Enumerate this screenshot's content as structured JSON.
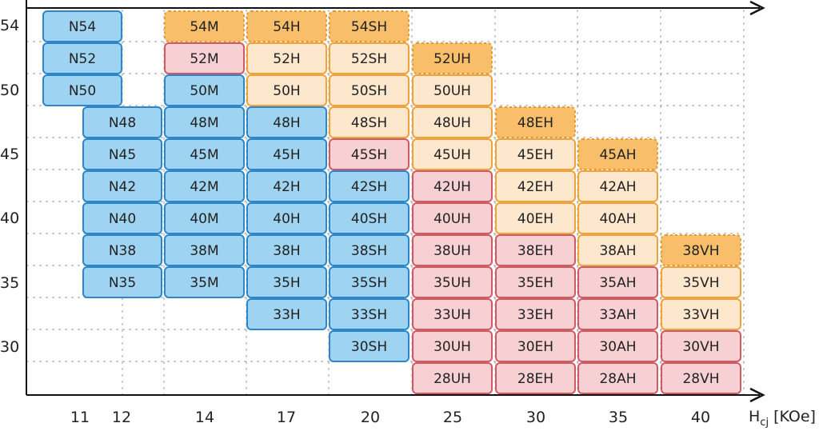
{
  "chart_data": {
    "type": "table",
    "title": "",
    "xlabel": "H",
    "xlabel_subscript": "cj",
    "xlabel_unit": "[KOe]",
    "ylabel": "",
    "x_ticks": [
      "11",
      "12",
      "14",
      "17",
      "20",
      "25",
      "30",
      "35",
      "40"
    ],
    "y_ticks": [
      "54",
      "50",
      "45",
      "40",
      "35",
      "30"
    ],
    "grid": true,
    "colors": {
      "blue_fill": "#9fd3f2",
      "blue_border": "#2e86c9",
      "pink_fill": "#f7d0d4",
      "pink_border": "#d05a63",
      "cream_fill": "#fde7cd",
      "cream_border": "#f0a23c",
      "orange_fill": "#f8be6a",
      "orange_border": "#e59a2c"
    },
    "columns": [
      {
        "key": "N",
        "grades": [
          {
            "label": "N54",
            "value": 54,
            "style": "blue"
          },
          {
            "label": "N52",
            "value": 52,
            "style": "blue"
          },
          {
            "label": "N50",
            "value": 50,
            "style": "blue"
          },
          {
            "label": "N48",
            "value": 48,
            "style": "blue"
          },
          {
            "label": "N45",
            "value": 45,
            "style": "blue"
          },
          {
            "label": "N42",
            "value": 42,
            "style": "blue"
          },
          {
            "label": "N40",
            "value": 40,
            "style": "blue"
          },
          {
            "label": "N38",
            "value": 38,
            "style": "blue"
          },
          {
            "label": "N35",
            "value": 35,
            "style": "blue"
          }
        ]
      },
      {
        "key": "M",
        "grades": [
          {
            "label": "54M",
            "value": 54,
            "style": "orange-dashed"
          },
          {
            "label": "52M",
            "value": 52,
            "style": "pink"
          },
          {
            "label": "50M",
            "value": 50,
            "style": "blue"
          },
          {
            "label": "48M",
            "value": 48,
            "style": "blue"
          },
          {
            "label": "45M",
            "value": 45,
            "style": "blue"
          },
          {
            "label": "42M",
            "value": 42,
            "style": "blue"
          },
          {
            "label": "40M",
            "value": 40,
            "style": "blue"
          },
          {
            "label": "38M",
            "value": 38,
            "style": "blue"
          },
          {
            "label": "35M",
            "value": 35,
            "style": "blue"
          }
        ]
      },
      {
        "key": "H",
        "grades": [
          {
            "label": "54H",
            "value": 54,
            "style": "orange-dashed"
          },
          {
            "label": "52H",
            "value": 52,
            "style": "cream"
          },
          {
            "label": "50H",
            "value": 50,
            "style": "cream"
          },
          {
            "label": "48H",
            "value": 48,
            "style": "blue"
          },
          {
            "label": "45H",
            "value": 45,
            "style": "blue"
          },
          {
            "label": "42H",
            "value": 42,
            "style": "blue"
          },
          {
            "label": "40H",
            "value": 40,
            "style": "blue"
          },
          {
            "label": "38H",
            "value": 38,
            "style": "blue"
          },
          {
            "label": "35H",
            "value": 35,
            "style": "blue"
          },
          {
            "label": "33H",
            "value": 33,
            "style": "blue"
          }
        ]
      },
      {
        "key": "SH",
        "grades": [
          {
            "label": "54SH",
            "value": 54,
            "style": "orange-dashed"
          },
          {
            "label": "52SH",
            "value": 52,
            "style": "cream"
          },
          {
            "label": "50SH",
            "value": 50,
            "style": "cream"
          },
          {
            "label": "48SH",
            "value": 48,
            "style": "cream"
          },
          {
            "label": "45SH",
            "value": 45,
            "style": "pink"
          },
          {
            "label": "42SH",
            "value": 42,
            "style": "blue"
          },
          {
            "label": "40SH",
            "value": 40,
            "style": "blue"
          },
          {
            "label": "38SH",
            "value": 38,
            "style": "blue"
          },
          {
            "label": "35SH",
            "value": 35,
            "style": "blue"
          },
          {
            "label": "33SH",
            "value": 33,
            "style": "blue"
          },
          {
            "label": "30SH",
            "value": 30,
            "style": "blue"
          }
        ]
      },
      {
        "key": "UH",
        "grades": [
          {
            "label": "52UH",
            "value": 52,
            "style": "orange-dashed"
          },
          {
            "label": "50UH",
            "value": 50,
            "style": "cream"
          },
          {
            "label": "48UH",
            "value": 48,
            "style": "cream"
          },
          {
            "label": "45UH",
            "value": 45,
            "style": "cream"
          },
          {
            "label": "42UH",
            "value": 42,
            "style": "pink"
          },
          {
            "label": "40UH",
            "value": 40,
            "style": "pink"
          },
          {
            "label": "38UH",
            "value": 38,
            "style": "pink"
          },
          {
            "label": "35UH",
            "value": 35,
            "style": "pink"
          },
          {
            "label": "33UH",
            "value": 33,
            "style": "pink"
          },
          {
            "label": "30UH",
            "value": 30,
            "style": "pink"
          },
          {
            "label": "28UH",
            "value": 28,
            "style": "pink"
          }
        ]
      },
      {
        "key": "EH",
        "grades": [
          {
            "label": "48EH",
            "value": 48,
            "style": "orange-dashed"
          },
          {
            "label": "45EH",
            "value": 45,
            "style": "cream"
          },
          {
            "label": "42EH",
            "value": 42,
            "style": "cream"
          },
          {
            "label": "40EH",
            "value": 40,
            "style": "cream"
          },
          {
            "label": "38EH",
            "value": 38,
            "style": "pink"
          },
          {
            "label": "35EH",
            "value": 35,
            "style": "pink"
          },
          {
            "label": "33EH",
            "value": 33,
            "style": "pink"
          },
          {
            "label": "30EH",
            "value": 30,
            "style": "pink"
          },
          {
            "label": "28EH",
            "value": 28,
            "style": "pink"
          }
        ]
      },
      {
        "key": "AH",
        "grades": [
          {
            "label": "45AH",
            "value": 45,
            "style": "orange-dashed"
          },
          {
            "label": "42AH",
            "value": 42,
            "style": "cream"
          },
          {
            "label": "40AH",
            "value": 40,
            "style": "cream"
          },
          {
            "label": "38AH",
            "value": 38,
            "style": "cream"
          },
          {
            "label": "35AH",
            "value": 35,
            "style": "pink"
          },
          {
            "label": "33AH",
            "value": 33,
            "style": "pink"
          },
          {
            "label": "30AH",
            "value": 30,
            "style": "pink"
          },
          {
            "label": "28AH",
            "value": 28,
            "style": "pink"
          }
        ]
      },
      {
        "key": "VH",
        "grades": [
          {
            "label": "38VH",
            "value": 38,
            "style": "orange-dashed"
          },
          {
            "label": "35VH",
            "value": 35,
            "style": "cream"
          },
          {
            "label": "33VH",
            "value": 33,
            "style": "cream"
          },
          {
            "label": "30VH",
            "value": 30,
            "style": "pink"
          },
          {
            "label": "28VH",
            "value": 28,
            "style": "pink"
          }
        ]
      }
    ]
  }
}
